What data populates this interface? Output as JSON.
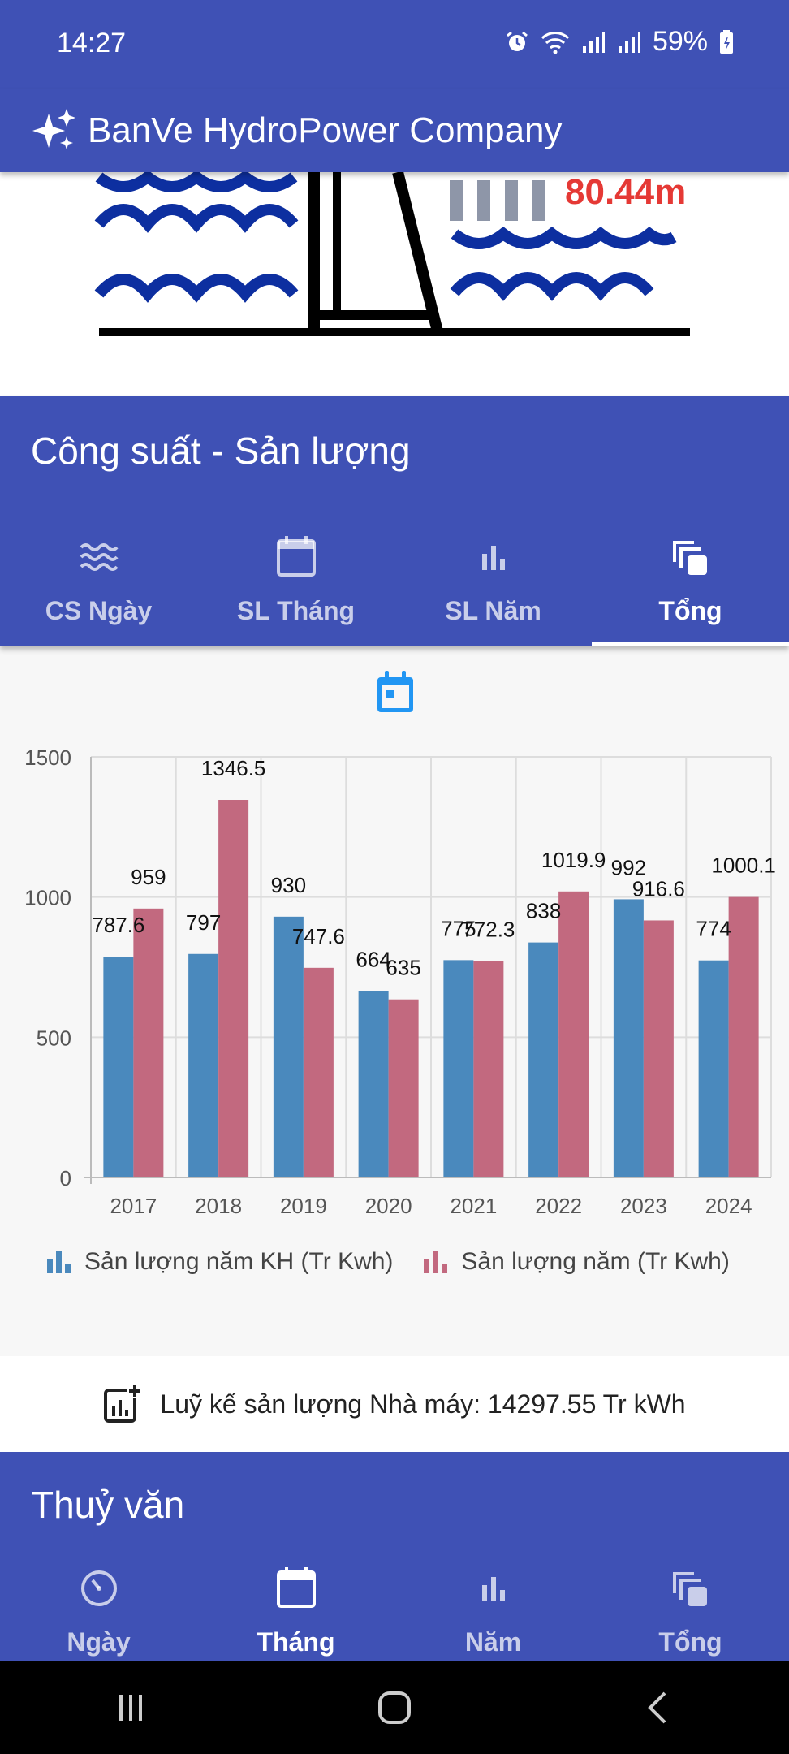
{
  "status_bar": {
    "time": "14:27",
    "battery": "59%"
  },
  "app_bar": {
    "title": "BanVe HydroPower Company"
  },
  "dam": {
    "water_level": "80.44m"
  },
  "power_section": {
    "title": "Công suất - Sản lượng",
    "tabs": [
      {
        "label": "CS Ngày",
        "icon": "waves-icon"
      },
      {
        "label": "SL Tháng",
        "icon": "calendar-icon"
      },
      {
        "label": "SL Năm",
        "icon": "bar-chart-icon"
      },
      {
        "label": "Tổng",
        "icon": "stack-icon",
        "active": true
      }
    ]
  },
  "chart_data": {
    "type": "bar",
    "categories": [
      "2017",
      "2018",
      "2019",
      "2020",
      "2021",
      "2022",
      "2023",
      "2024"
    ],
    "series": [
      {
        "name": "Sản lượng năm KH (Tr Kwh)",
        "color": "#4a89bd",
        "values": [
          787.6,
          797,
          930,
          664,
          775,
          838,
          992,
          774
        ]
      },
      {
        "name": "Sản lượng năm (Tr Kwh)",
        "color": "#c2697f",
        "values": [
          959,
          1346.5,
          747.6,
          635,
          772.3,
          1019.9,
          916.6,
          1000.1
        ]
      }
    ],
    "yticks": [
      "0",
      "500",
      "1000",
      "1500"
    ],
    "ylim": [
      0,
      1500
    ],
    "grid": true,
    "legend": "bottom"
  },
  "cumulative": {
    "text": "Luỹ kế sản lượng Nhà máy: 14297.55 Tr kWh"
  },
  "hydro_section": {
    "title": "Thuỷ văn",
    "tabs": [
      {
        "label": "Ngày",
        "icon": "gauge-icon"
      },
      {
        "label": "Tháng",
        "icon": "calendar-icon",
        "active": true
      },
      {
        "label": "Năm",
        "icon": "bar-chart-icon"
      },
      {
        "label": "Tổng",
        "icon": "stack-icon"
      }
    ]
  }
}
